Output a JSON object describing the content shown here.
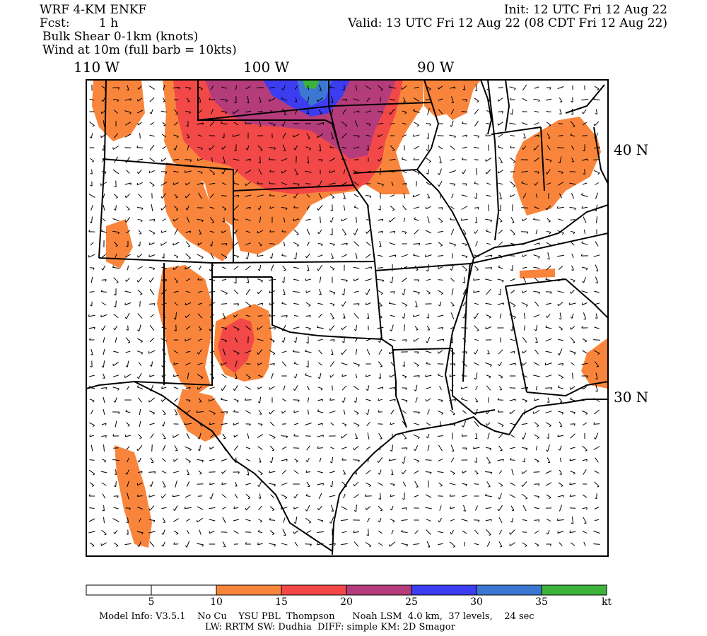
{
  "header": {
    "model": "WRF 4-KM ENKF",
    "fcst_label": "Fcst:",
    "fcst_value": "1 h",
    "field_line_1": "Bulk Shear 0-1km (knots)",
    "field_line_2": "Wind at 10m (full barb = 10kts)",
    "init": "Init: 12 UTC Fri 12 Aug 22",
    "valid": "Valid: 13 UTC Fri 12 Aug 22 (08 CDT Fri 12 Aug 22)"
  },
  "axes": {
    "longitude_labels": [
      "110 W",
      "100 W",
      "90 W"
    ],
    "latitude_labels": [
      "40 N",
      "30 N"
    ]
  },
  "legend": {
    "levels": [
      "5",
      "10",
      "15",
      "20",
      "25",
      "30",
      "35"
    ],
    "unit": "kt",
    "colors": [
      "#ffffff",
      "#ffffff",
      "#f9853c",
      "#f24848",
      "#b43c7a",
      "#3c3cf0",
      "#3c78d2",
      "#3cb43c"
    ]
  },
  "footer": {
    "line_1": "Model Info: V3.5.1    No Cu    YSU PBL  Thompson      Noah LSM  4.0 km,  37 levels,    24 sec",
    "line_2": "LW: RRTM SW: Dudhia  DIFF: simple KM: 2D Smagor"
  }
}
